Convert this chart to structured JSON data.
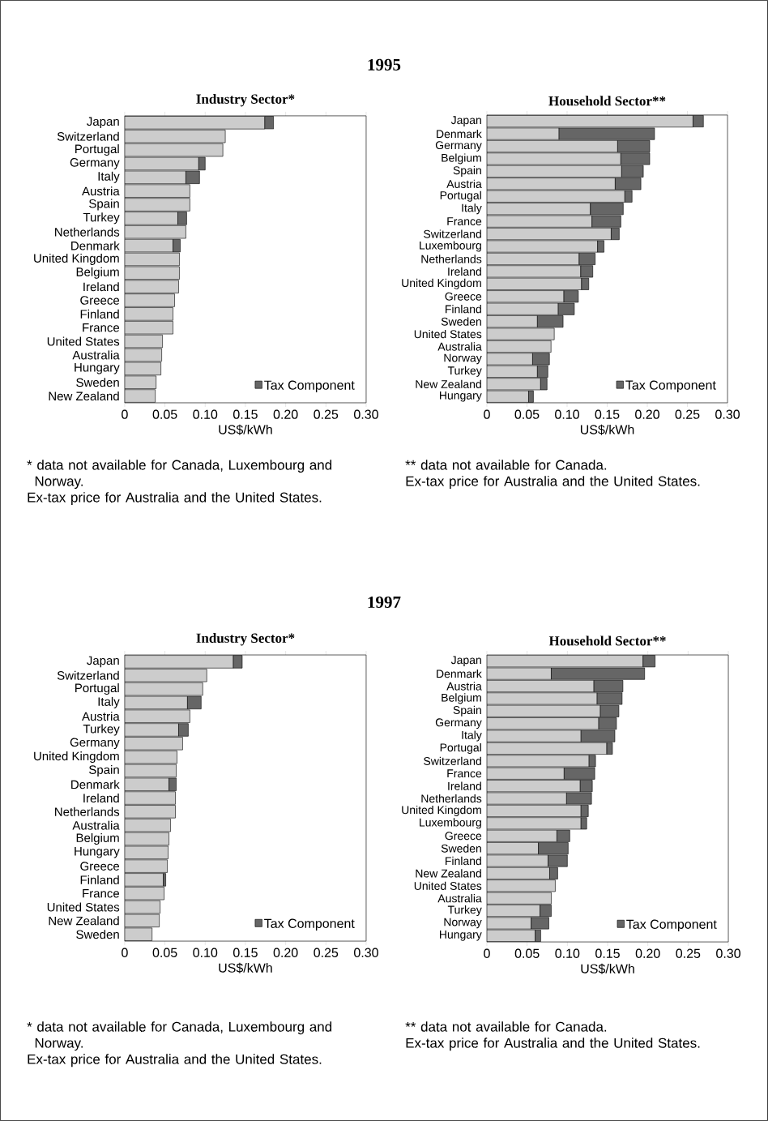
{
  "chart_data": [
    {
      "type": "bar",
      "orientation": "horizontal",
      "stacked": true,
      "title": "1995",
      "subtitle": "Industry Sector*",
      "xlabel": "US$/kWh",
      "categories": [
        "Japan",
        "Switzerland",
        "Portugal",
        "Germany",
        "Italy",
        "Austria",
        "Spain",
        "Turkey",
        "Netherlands",
        "Denmark",
        "United Kingdom",
        "Belgium",
        "Ireland",
        "Greece",
        "Finland",
        "France",
        "United States",
        "Australia",
        "Hungary",
        "Sweden",
        "New Zealand"
      ],
      "series": [
        {
          "color": "#cccccc",
          "values": [
            0.174,
            0.125,
            0.122,
            0.092,
            0.076,
            0.081,
            0.081,
            0.066,
            0.076,
            0.06,
            0.068,
            0.068,
            0.067,
            0.062,
            0.06,
            0.06,
            0.047,
            0.046,
            0.045,
            0.039,
            0.038
          ]
        },
        {
          "name": "Tax Component",
          "color": "#666666",
          "values": [
            0.011,
            null,
            null,
            0.008,
            0.017,
            null,
            null,
            0.011,
            null,
            0.009,
            null,
            null,
            null,
            null,
            null,
            null,
            null,
            null,
            null,
            null,
            null
          ]
        }
      ],
      "xlim": [
        0,
        0.3
      ],
      "xticks": [
        0,
        0.05,
        {
          "value": 0.1,
          "label": "0.10"
        },
        0.15,
        {
          "value": 0.2,
          "label": "0.20"
        },
        0.25,
        {
          "value": 0.3,
          "label": "0.30"
        }
      ],
      "legend": "bottom right",
      "annotations": [
        "* data not available for Canada, Luxembourg and Norway.",
        "Ex-tax price for Australia and the United States."
      ]
    },
    {
      "type": "bar",
      "orientation": "horizontal",
      "stacked": true,
      "subtitle": "Household Sector**",
      "xlabel": "US$/kWh",
      "categories": [
        "Japan",
        "Denmark",
        "Germany",
        "Belgium",
        "Spain",
        "Austria",
        "Portugal",
        "Italy",
        "France",
        "Switzerland",
        "Luxembourg",
        "Netherlands",
        "Ireland",
        "United Kingdom",
        "Greece",
        "Finland",
        "Sweden",
        "United States",
        "Australia",
        "Norway",
        "Turkey",
        "New Zealand",
        "Hungary"
      ],
      "series": [
        {
          "color": "#cccccc",
          "values": [
            0.257,
            0.09,
            0.163,
            0.167,
            0.168,
            0.16,
            0.172,
            0.129,
            0.131,
            0.155,
            0.138,
            0.115,
            0.117,
            0.118,
            0.096,
            0.089,
            0.063,
            0.084,
            0.08,
            0.057,
            0.063,
            0.067,
            0.052
          ]
        },
        {
          "name": "Tax Component",
          "color": "#666666",
          "values": [
            0.013,
            0.119,
            0.04,
            0.036,
            0.027,
            0.032,
            0.009,
            0.041,
            0.036,
            0.01,
            0.008,
            0.02,
            0.015,
            0.009,
            0.018,
            0.02,
            0.032,
            null,
            null,
            0.021,
            0.013,
            0.008,
            0.006
          ]
        }
      ],
      "xlim": [
        0,
        0.3
      ],
      "xticks": [
        0,
        0.05,
        {
          "value": 0.1,
          "label": "0.10"
        },
        0.15,
        {
          "value": 0.2,
          "label": "0.20"
        },
        0.25,
        {
          "value": 0.3,
          "label": "0.30"
        }
      ],
      "legend": "bottom right",
      "annotations": [
        "** data not available for Canada.",
        "Ex-tax price for Australia and the United States."
      ]
    },
    {
      "type": "bar",
      "orientation": "horizontal",
      "stacked": true,
      "title": "1997",
      "subtitle": "Industry Sector*",
      "xlabel": "US$/kWh",
      "categories": [
        "Japan",
        "Switzerland",
        "Portugal",
        "Italy",
        "Austria",
        "Turkey",
        "Germany",
        "United Kingdom",
        "Spain",
        "Denmark",
        "Ireland",
        "Netherlands",
        "Australia",
        "Belgium",
        "Hungary",
        "Greece",
        "Finland",
        "France",
        "United States",
        "New Zealand",
        "Sweden"
      ],
      "series": [
        {
          "color": "#cccccc",
          "values": [
            0.135,
            0.102,
            0.097,
            0.078,
            0.081,
            0.067,
            0.072,
            0.065,
            0.064,
            0.055,
            0.063,
            0.063,
            0.057,
            0.055,
            0.054,
            0.053,
            0.048,
            0.049,
            0.044,
            0.043,
            0.034
          ]
        },
        {
          "name": "Tax Component",
          "color": "#666666",
          "values": [
            0.011,
            null,
            null,
            0.017,
            null,
            0.012,
            null,
            null,
            null,
            0.009,
            null,
            null,
            null,
            null,
            null,
            null,
            0.003,
            null,
            null,
            null,
            null
          ]
        }
      ],
      "xlim": [
        0,
        0.3
      ],
      "xticks": [
        0,
        0.05,
        {
          "value": 0.1,
          "label": "0.10"
        },
        0.15,
        {
          "value": 0.2,
          "label": "0.20"
        },
        0.25,
        {
          "value": 0.3,
          "label": "0.30"
        }
      ],
      "legend": "bottom right",
      "annotations": [
        "* data not available for Canada, Luxembourg and Norway.",
        "Ex-tax price for Australia and the United States."
      ]
    },
    {
      "type": "bar",
      "orientation": "horizontal",
      "stacked": true,
      "subtitle": "Household Sector**",
      "xlabel": "US$/kWh",
      "categories": [
        "Japan",
        "Denmark",
        "Austria",
        "Belgium",
        "Spain",
        "Germany",
        "Italy",
        "Portugal",
        "Switzerland",
        "France",
        "Ireland",
        "Netherlands",
        "United Kingdom",
        "Luxembourg",
        "Greece",
        "Sweden",
        "Finland",
        "New Zealand",
        "United States",
        "Australia",
        "Turkey",
        "Norway",
        "Hungary"
      ],
      "series": [
        {
          "color": "#cccccc",
          "values": [
            0.194,
            0.08,
            0.133,
            0.137,
            0.141,
            0.139,
            0.117,
            0.149,
            0.127,
            0.096,
            0.116,
            0.099,
            0.117,
            0.117,
            0.087,
            0.064,
            0.076,
            0.078,
            0.085,
            0.08,
            0.066,
            0.055,
            0.06
          ]
        },
        {
          "name": "Tax Component",
          "color": "#666666",
          "values": [
            0.015,
            0.116,
            0.036,
            0.031,
            0.023,
            0.022,
            0.042,
            0.007,
            0.008,
            0.038,
            0.015,
            0.031,
            0.009,
            0.007,
            0.016,
            0.037,
            0.024,
            0.01,
            null,
            null,
            0.014,
            0.022,
            0.007
          ]
        }
      ],
      "xlim": [
        0,
        0.3
      ],
      "xticks": [
        0,
        0.05,
        {
          "value": 0.1,
          "label": "0.10"
        },
        0.15,
        {
          "value": 0.2,
          "label": "0.20"
        },
        0.25,
        {
          "value": 0.3,
          "label": "0.30"
        }
      ],
      "legend": "bottom right",
      "annotations": [
        "** data not available for Canada.",
        "Ex-tax price for Australia and the United States."
      ]
    }
  ]
}
